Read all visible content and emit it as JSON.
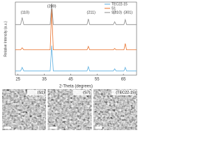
{
  "chart_data": {
    "type": "line",
    "xlabel": "2-Theta (degrees)",
    "ylabel": "Relative Intensity (a.u.)",
    "x": [
      24,
      26,
      26.6,
      27.2,
      30,
      33,
      37.2,
      37.8,
      38.4,
      42,
      46,
      51.2,
      51.7,
      52.2,
      55,
      58,
      61.2,
      61.7,
      62.2,
      64,
      65.2,
      65.7,
      66.2,
      68,
      70
    ],
    "xlim": [
      24,
      70
    ],
    "xticks": [
      25,
      35,
      45,
      55,
      65
    ],
    "ylim": [
      0,
      100
    ],
    "series": [
      {
        "name": "TEC22-15",
        "color": "#5aaee0",
        "values": [
          4,
          4,
          9,
          4,
          4,
          4,
          4,
          40,
          4,
          4,
          4,
          4,
          10,
          4,
          4,
          4,
          4,
          7,
          4,
          4,
          4,
          9,
          4,
          4,
          4
        ]
      },
      {
        "name": "S1",
        "color": "#e8702a",
        "values": [
          34,
          34,
          37,
          34,
          34,
          34,
          34,
          92,
          34,
          34,
          34,
          34,
          39,
          34,
          34,
          34,
          34,
          36,
          34,
          34,
          34,
          43,
          34,
          34,
          34
        ]
      },
      {
        "name": "S7",
        "color": "#8c8c8c",
        "values": [
          70,
          70,
          80,
          70,
          70,
          70,
          70,
          100,
          70,
          70,
          70,
          70,
          78,
          70,
          70,
          70,
          70,
          74,
          70,
          70,
          70,
          77,
          70,
          70,
          70
        ]
      }
    ],
    "annotations": [
      {
        "text": "(110)",
        "x": 26.6
      },
      {
        "text": "(200)",
        "x": 37.8
      },
      {
        "text": "(211)",
        "x": 51.7
      },
      {
        "text": "(310)",
        "x": 61.7
      },
      {
        "text": "(301)",
        "x": 65.7
      }
    ],
    "legend": "top-right"
  },
  "micrographs": [
    "(S1)",
    "(S7)",
    "(TEC22-15)"
  ]
}
